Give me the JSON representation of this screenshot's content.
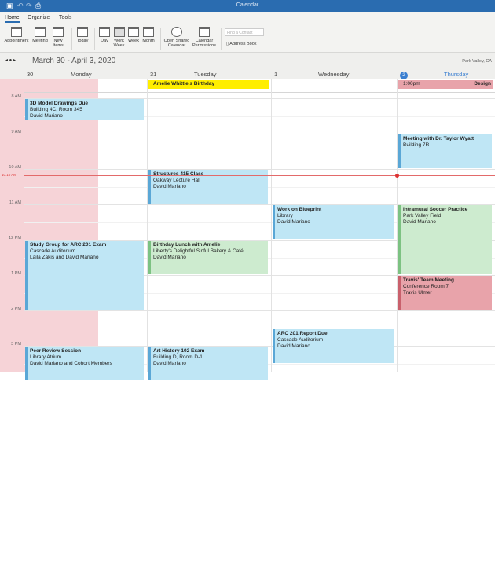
{
  "window": {
    "title": "Calendar"
  },
  "tabs": [
    "Home",
    "Organize",
    "Tools"
  ],
  "ribbon": {
    "buttons": [
      "Appointment",
      "Meeting",
      "New Items",
      "Today",
      "Day",
      "Work Week",
      "Week",
      "Month",
      "Open Shared Calendar",
      "Calendar Permissions"
    ],
    "find_placeholder": "Find a Contact",
    "address_book": "Address Book",
    "selected": "Work Week"
  },
  "nav": {
    "range": "March 30 - April 3, 2020",
    "location": "Park Valley, CA"
  },
  "days": [
    {
      "num": "30",
      "name": "Monday"
    },
    {
      "num": "31",
      "name": "Tuesday"
    },
    {
      "num": "1",
      "name": "Wednesday"
    },
    {
      "num": "2",
      "name": "Thursday",
      "today": true
    }
  ],
  "hours": [
    "8 AM",
    "9 AM",
    "10 AM",
    "11 AM",
    "12 PM",
    "1 PM",
    "2 PM",
    "3 PM"
  ],
  "now": {
    "label": "10:10 AM",
    "time": 10.1667
  },
  "all_day": [
    {
      "day": 1,
      "title": "Amelie Whittle's Birthday",
      "color": "#ffee00"
    },
    {
      "day": 3,
      "time": "1:00pm",
      "title": "Design",
      "color": "#e8a3aa"
    }
  ],
  "events": [
    {
      "day": 0,
      "start": 8,
      "end": 8.65,
      "title": "3D Model Drawings Due",
      "lines": [
        "Building 4C, Room 345",
        "David Mariano"
      ],
      "color": "blue"
    },
    {
      "day": 0,
      "start": 12,
      "end": 14,
      "title": "Study Group for ARC 201 Exam",
      "lines": [
        "Cascade Auditorium",
        "Laila Zakis and David Mariano"
      ],
      "color": "blue"
    },
    {
      "day": 0,
      "start": 15,
      "end": 16,
      "title": "Peer Review Session",
      "lines": [
        "Library Atrium",
        "David Mariano and Cohort Members"
      ],
      "color": "blue"
    },
    {
      "day": 1,
      "start": 10,
      "end": 11,
      "title": "Structures 415 Class",
      "lines": [
        "Oakway Lecture Hall",
        "David Mariano"
      ],
      "color": "blue"
    },
    {
      "day": 1,
      "start": 12,
      "end": 13,
      "title": "Birthday Lunch with Amelie",
      "lines": [
        "Liberty's Delightful Sinful Bakery & Café",
        "David Mariano"
      ],
      "color": "green"
    },
    {
      "day": 1,
      "start": 15,
      "end": 16,
      "title": "Art History 102 Exam",
      "lines": [
        "Building D, Room D-1",
        "David Mariano"
      ],
      "color": "blue"
    },
    {
      "day": 2,
      "start": 11,
      "end": 12,
      "title": "Work on Blueprint",
      "lines": [
        "Library",
        "David Mariano"
      ],
      "color": "blue"
    },
    {
      "day": 2,
      "start": 14.5,
      "end": 15.5,
      "title": "ARC 201 Report Due",
      "lines": [
        "Cascade Auditorium",
        "David Mariano"
      ],
      "color": "blue"
    },
    {
      "day": 3,
      "start": 9,
      "end": 10,
      "title": "Meeting with Dr. Taylor Wyatt",
      "lines": [
        "Building 7R"
      ],
      "color": "blue"
    },
    {
      "day": 3,
      "start": 11,
      "end": 13,
      "title": "Intramural Soccer Practice",
      "lines": [
        "Park Valley Field",
        "David Mariano"
      ],
      "color": "green"
    },
    {
      "day": 3,
      "start": 13,
      "end": 14,
      "title": "Travis' Team Meeting",
      "lines": [
        "Conference Room 7",
        "Travis Ulmer"
      ],
      "color": "red"
    }
  ],
  "colors": {
    "blue": [
      "#bfe6f5",
      "#5aa7d6"
    ],
    "green": [
      "#cdebcf",
      "#7cc282"
    ],
    "red": [
      "#e8a3aa",
      "#c9606c"
    ],
    "accent": "#2a6cb0"
  }
}
